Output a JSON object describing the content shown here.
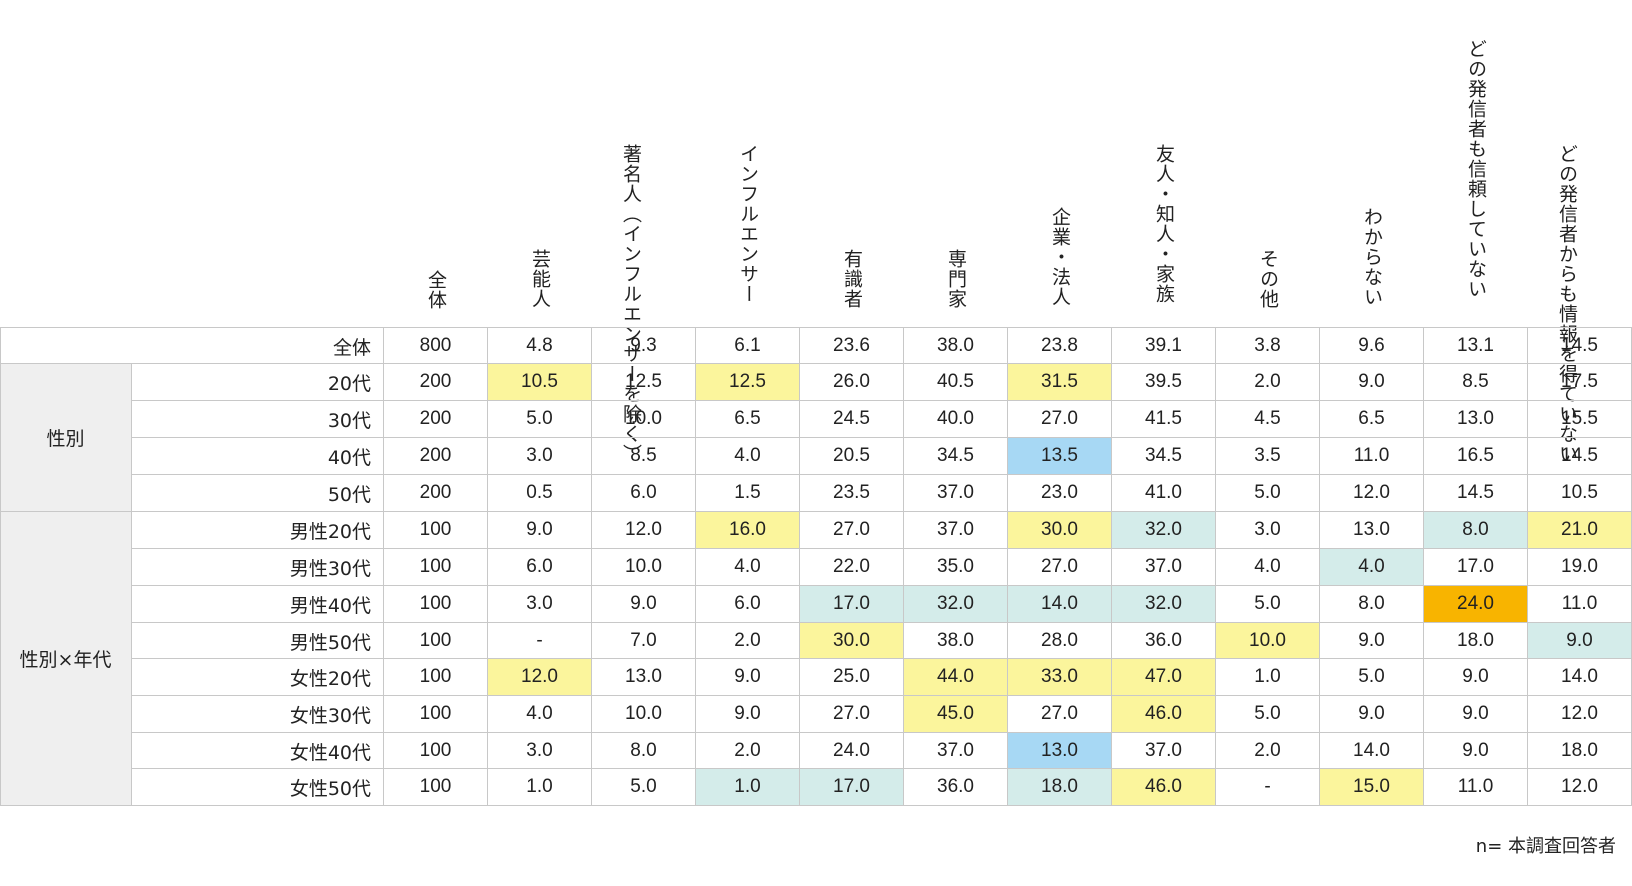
{
  "chart_data": {
    "type": "table",
    "columns": [
      "全体",
      "芸能人",
      "著名人（インフルエンサーを除く）",
      "インフルエンサー",
      "有識者",
      "専門家",
      "企業・法人",
      "友人・知人・家族",
      "その他",
      "わからない",
      "どの発信者も信頼していない",
      "どの発信者からも情報を得ていない"
    ],
    "groups": [
      {
        "label": "",
        "rows": [
          0
        ]
      },
      {
        "label": "性別",
        "rows": [
          1,
          2,
          3,
          4
        ]
      },
      {
        "label": "性別×年代",
        "rows": [
          5,
          6,
          7,
          8,
          9,
          10,
          11,
          12
        ]
      }
    ],
    "rows": [
      {
        "label": "全体",
        "values": [
          "800",
          "4.8",
          "9.3",
          "6.1",
          "23.6",
          "38.0",
          "23.8",
          "39.1",
          "3.8",
          "9.6",
          "13.1",
          "14.5"
        ],
        "highlights": [
          "",
          "",
          "",
          "",
          "",
          "",
          "",
          "",
          "",
          "",
          "",
          ""
        ]
      },
      {
        "label": "20代",
        "values": [
          "200",
          "10.5",
          "12.5",
          "12.5",
          "26.0",
          "40.5",
          "31.5",
          "39.5",
          "2.0",
          "9.0",
          "8.5",
          "17.5"
        ],
        "highlights": [
          "",
          "y",
          "",
          "y",
          "",
          "",
          "y",
          "",
          "",
          "",
          "",
          ""
        ]
      },
      {
        "label": "30代",
        "values": [
          "200",
          "5.0",
          "10.0",
          "6.5",
          "24.5",
          "40.0",
          "27.0",
          "41.5",
          "4.5",
          "6.5",
          "13.0",
          "15.5"
        ],
        "highlights": [
          "",
          "",
          "",
          "",
          "",
          "",
          "",
          "",
          "",
          "",
          "",
          ""
        ]
      },
      {
        "label": "40代",
        "values": [
          "200",
          "3.0",
          "8.5",
          "4.0",
          "20.5",
          "34.5",
          "13.5",
          "34.5",
          "3.5",
          "11.0",
          "16.5",
          "14.5"
        ],
        "highlights": [
          "",
          "",
          "",
          "",
          "",
          "",
          "b",
          "",
          "",
          "",
          "",
          ""
        ]
      },
      {
        "label": "50代",
        "values": [
          "200",
          "0.5",
          "6.0",
          "1.5",
          "23.5",
          "37.0",
          "23.0",
          "41.0",
          "5.0",
          "12.0",
          "14.5",
          "10.5"
        ],
        "highlights": [
          "",
          "",
          "",
          "",
          "",
          "",
          "",
          "",
          "",
          "",
          "",
          ""
        ]
      },
      {
        "label": "男性20代",
        "values": [
          "100",
          "9.0",
          "12.0",
          "16.0",
          "27.0",
          "37.0",
          "30.0",
          "32.0",
          "3.0",
          "13.0",
          "8.0",
          "21.0"
        ],
        "highlights": [
          "",
          "",
          "",
          "y",
          "",
          "",
          "y",
          "g",
          "",
          "",
          "g",
          "y"
        ]
      },
      {
        "label": "男性30代",
        "values": [
          "100",
          "6.0",
          "10.0",
          "4.0",
          "22.0",
          "35.0",
          "27.0",
          "37.0",
          "4.0",
          "4.0",
          "17.0",
          "19.0"
        ],
        "highlights": [
          "",
          "",
          "",
          "",
          "",
          "",
          "",
          "",
          "",
          "g",
          "",
          ""
        ]
      },
      {
        "label": "男性40代",
        "values": [
          "100",
          "3.0",
          "9.0",
          "6.0",
          "17.0",
          "32.0",
          "14.0",
          "32.0",
          "5.0",
          "8.0",
          "24.0",
          "11.0"
        ],
        "highlights": [
          "",
          "",
          "",
          "",
          "g",
          "g",
          "g",
          "g",
          "",
          "",
          "o",
          ""
        ]
      },
      {
        "label": "男性50代",
        "values": [
          "100",
          "-",
          "7.0",
          "2.0",
          "30.0",
          "38.0",
          "28.0",
          "36.0",
          "10.0",
          "9.0",
          "18.0",
          "9.0"
        ],
        "highlights": [
          "",
          "",
          "",
          "",
          "y",
          "",
          "",
          "",
          "y",
          "",
          "",
          "g"
        ]
      },
      {
        "label": "女性20代",
        "values": [
          "100",
          "12.0",
          "13.0",
          "9.0",
          "25.0",
          "44.0",
          "33.0",
          "47.0",
          "1.0",
          "5.0",
          "9.0",
          "14.0"
        ],
        "highlights": [
          "",
          "y",
          "",
          "",
          "",
          "y",
          "y",
          "y",
          "",
          "",
          "",
          ""
        ]
      },
      {
        "label": "女性30代",
        "values": [
          "100",
          "4.0",
          "10.0",
          "9.0",
          "27.0",
          "45.0",
          "27.0",
          "46.0",
          "5.0",
          "9.0",
          "9.0",
          "12.0"
        ],
        "highlights": [
          "",
          "",
          "",
          "",
          "",
          "y",
          "",
          "y",
          "",
          "",
          "",
          ""
        ]
      },
      {
        "label": "女性40代",
        "values": [
          "100",
          "3.0",
          "8.0",
          "2.0",
          "24.0",
          "37.0",
          "13.0",
          "37.0",
          "2.0",
          "14.0",
          "9.0",
          "18.0"
        ],
        "highlights": [
          "",
          "",
          "",
          "",
          "",
          "",
          "b",
          "",
          "",
          "",
          "",
          ""
        ]
      },
      {
        "label": "女性50代",
        "values": [
          "100",
          "1.0",
          "5.0",
          "1.0",
          "17.0",
          "36.0",
          "18.0",
          "46.0",
          "-",
          "15.0",
          "11.0",
          "12.0"
        ],
        "highlights": [
          "",
          "",
          "",
          "g",
          "g",
          "",
          "g",
          "y",
          "",
          "y",
          "",
          ""
        ]
      }
    ]
  },
  "colors": {
    "y": "#fbf59c",
    "b": "#a7d8f4",
    "g": "#d4ecea",
    "o": "#f8b400",
    "group_bg": "#efefef",
    "border": "#c8c8c8"
  },
  "footnote": "n= 本調査回答者"
}
